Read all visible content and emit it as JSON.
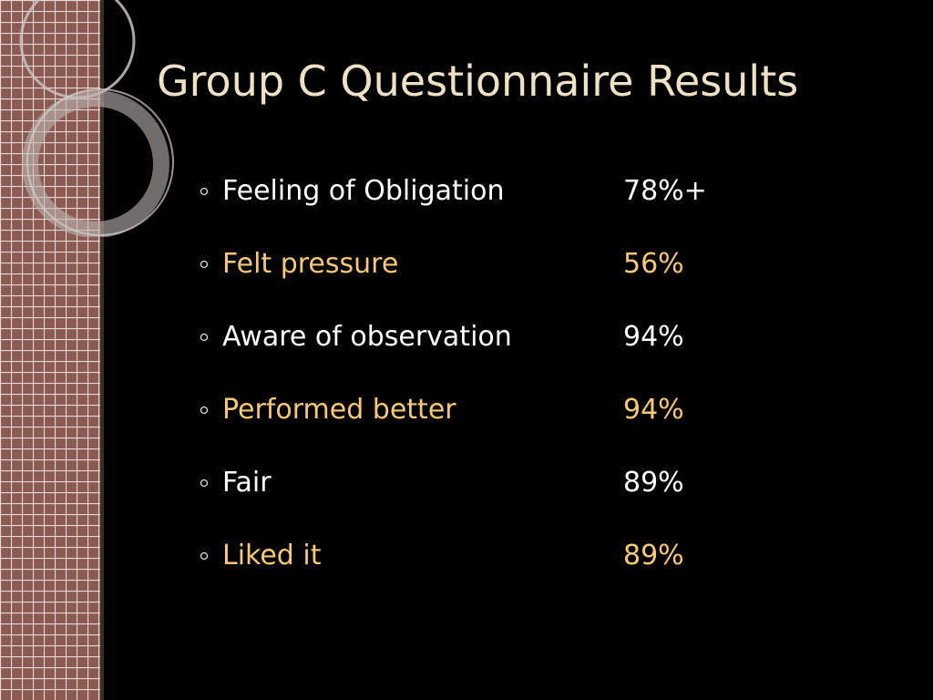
{
  "title": "Group C Questionnaire Results",
  "items": [
    {
      "label": "Feeling of Obligation",
      "value": "78%+"
    },
    {
      "label": "Felt pressure",
      "value": "56%"
    },
    {
      "label": "Aware of observation",
      "value": "94%"
    },
    {
      "label": "Performed better",
      "value": "94%"
    },
    {
      "label": "Fair",
      "value": "89%"
    },
    {
      "label": "Liked it",
      "value": "89%"
    }
  ]
}
